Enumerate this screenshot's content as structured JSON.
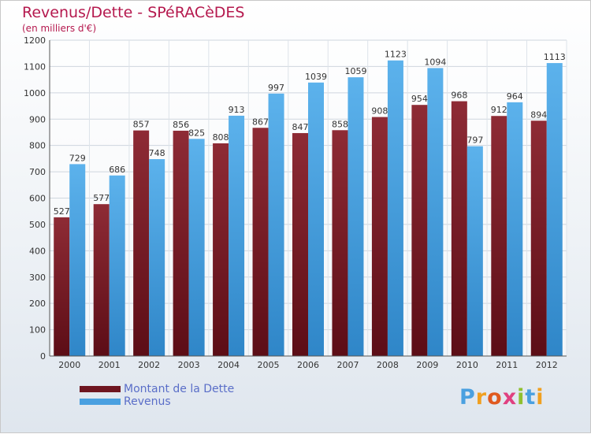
{
  "header": {
    "title": "Revenus/Dette - SPéRACèDES",
    "subtitle": "(en milliers d'€)"
  },
  "colors": {
    "debt": "#7a1a24",
    "revenue": "#4aa0e0",
    "title": "#b5194e",
    "legend_text": "#5a6ec8"
  },
  "legend": {
    "debt_label": "Montant de la Dette",
    "revenue_label": "Revenus"
  },
  "logo": {
    "letters": [
      "P",
      "r",
      "o",
      "x",
      "i",
      "t",
      "i"
    ],
    "colors": [
      "#4aa0e0",
      "#f0a020",
      "#e05a20",
      "#e04080",
      "#90c030",
      "#4aa0e0",
      "#f0a020"
    ]
  },
  "chart_data": {
    "type": "bar",
    "title": "Revenus/Dette - SPéRACèDES",
    "subtitle": "(en milliers d'€)",
    "categories": [
      "2000",
      "2001",
      "2002",
      "2003",
      "2004",
      "2005",
      "2006",
      "2007",
      "2008",
      "2009",
      "2010",
      "2011",
      "2012"
    ],
    "series": [
      {
        "name": "Montant de la Dette",
        "values": [
          527,
          577,
          857,
          856,
          808,
          867,
          847,
          858,
          908,
          954,
          968,
          912,
          894
        ]
      },
      {
        "name": "Revenus",
        "values": [
          729,
          686,
          748,
          825,
          913,
          997,
          1039,
          1059,
          1123,
          1094,
          797,
          964,
          1113
        ]
      }
    ],
    "ylim": [
      0,
      1200
    ],
    "yticks": [
      0,
      100,
      200,
      300,
      400,
      500,
      600,
      700,
      800,
      900,
      1000,
      1100,
      1200
    ],
    "grid": true,
    "legend_position": "bottom-left"
  }
}
